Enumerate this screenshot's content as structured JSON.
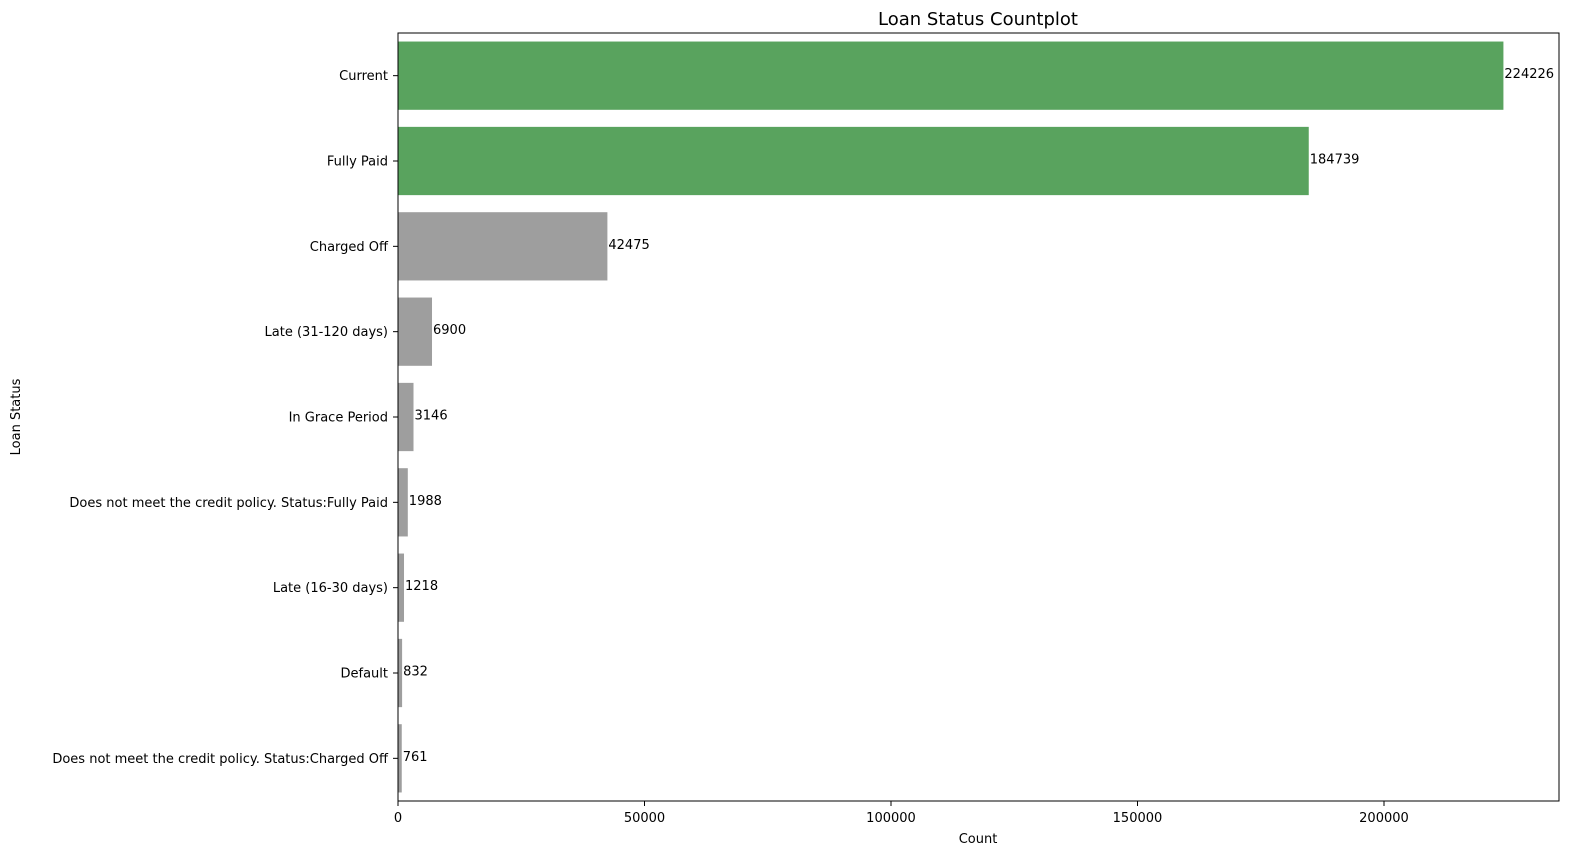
{
  "chart_data": {
    "type": "bar",
    "orientation": "horizontal",
    "title": "Loan Status Countplot",
    "xlabel": "Count",
    "ylabel": "Loan Status",
    "categories": [
      "Current",
      "Fully Paid",
      "Charged Off",
      "Late (31-120 days)",
      "In Grace Period",
      "Does not meet the credit policy. Status:Fully Paid",
      "Late (16-30 days)",
      "Default",
      "Does not meet the credit policy. Status:Charged Off"
    ],
    "values": [
      224226,
      184739,
      42475,
      6900,
      3146,
      1988,
      1218,
      832,
      761
    ],
    "data_labels": [
      "224226",
      "184739",
      "42475",
      "6900",
      "3146",
      "1988",
      "1218",
      "832",
      "761"
    ],
    "bar_colors": [
      "#59a35e",
      "#59a35e",
      "#9e9e9e",
      "#9e9e9e",
      "#9e9e9e",
      "#9e9e9e",
      "#9e9e9e",
      "#9e9e9e",
      "#9e9e9e"
    ],
    "xlim": [
      0,
      235500
    ],
    "xticks": [
      0,
      50000,
      100000,
      150000,
      200000
    ],
    "xtick_labels": [
      "0",
      "50000",
      "100000",
      "150000",
      "200000"
    ],
    "grid": false,
    "legend": "none"
  }
}
